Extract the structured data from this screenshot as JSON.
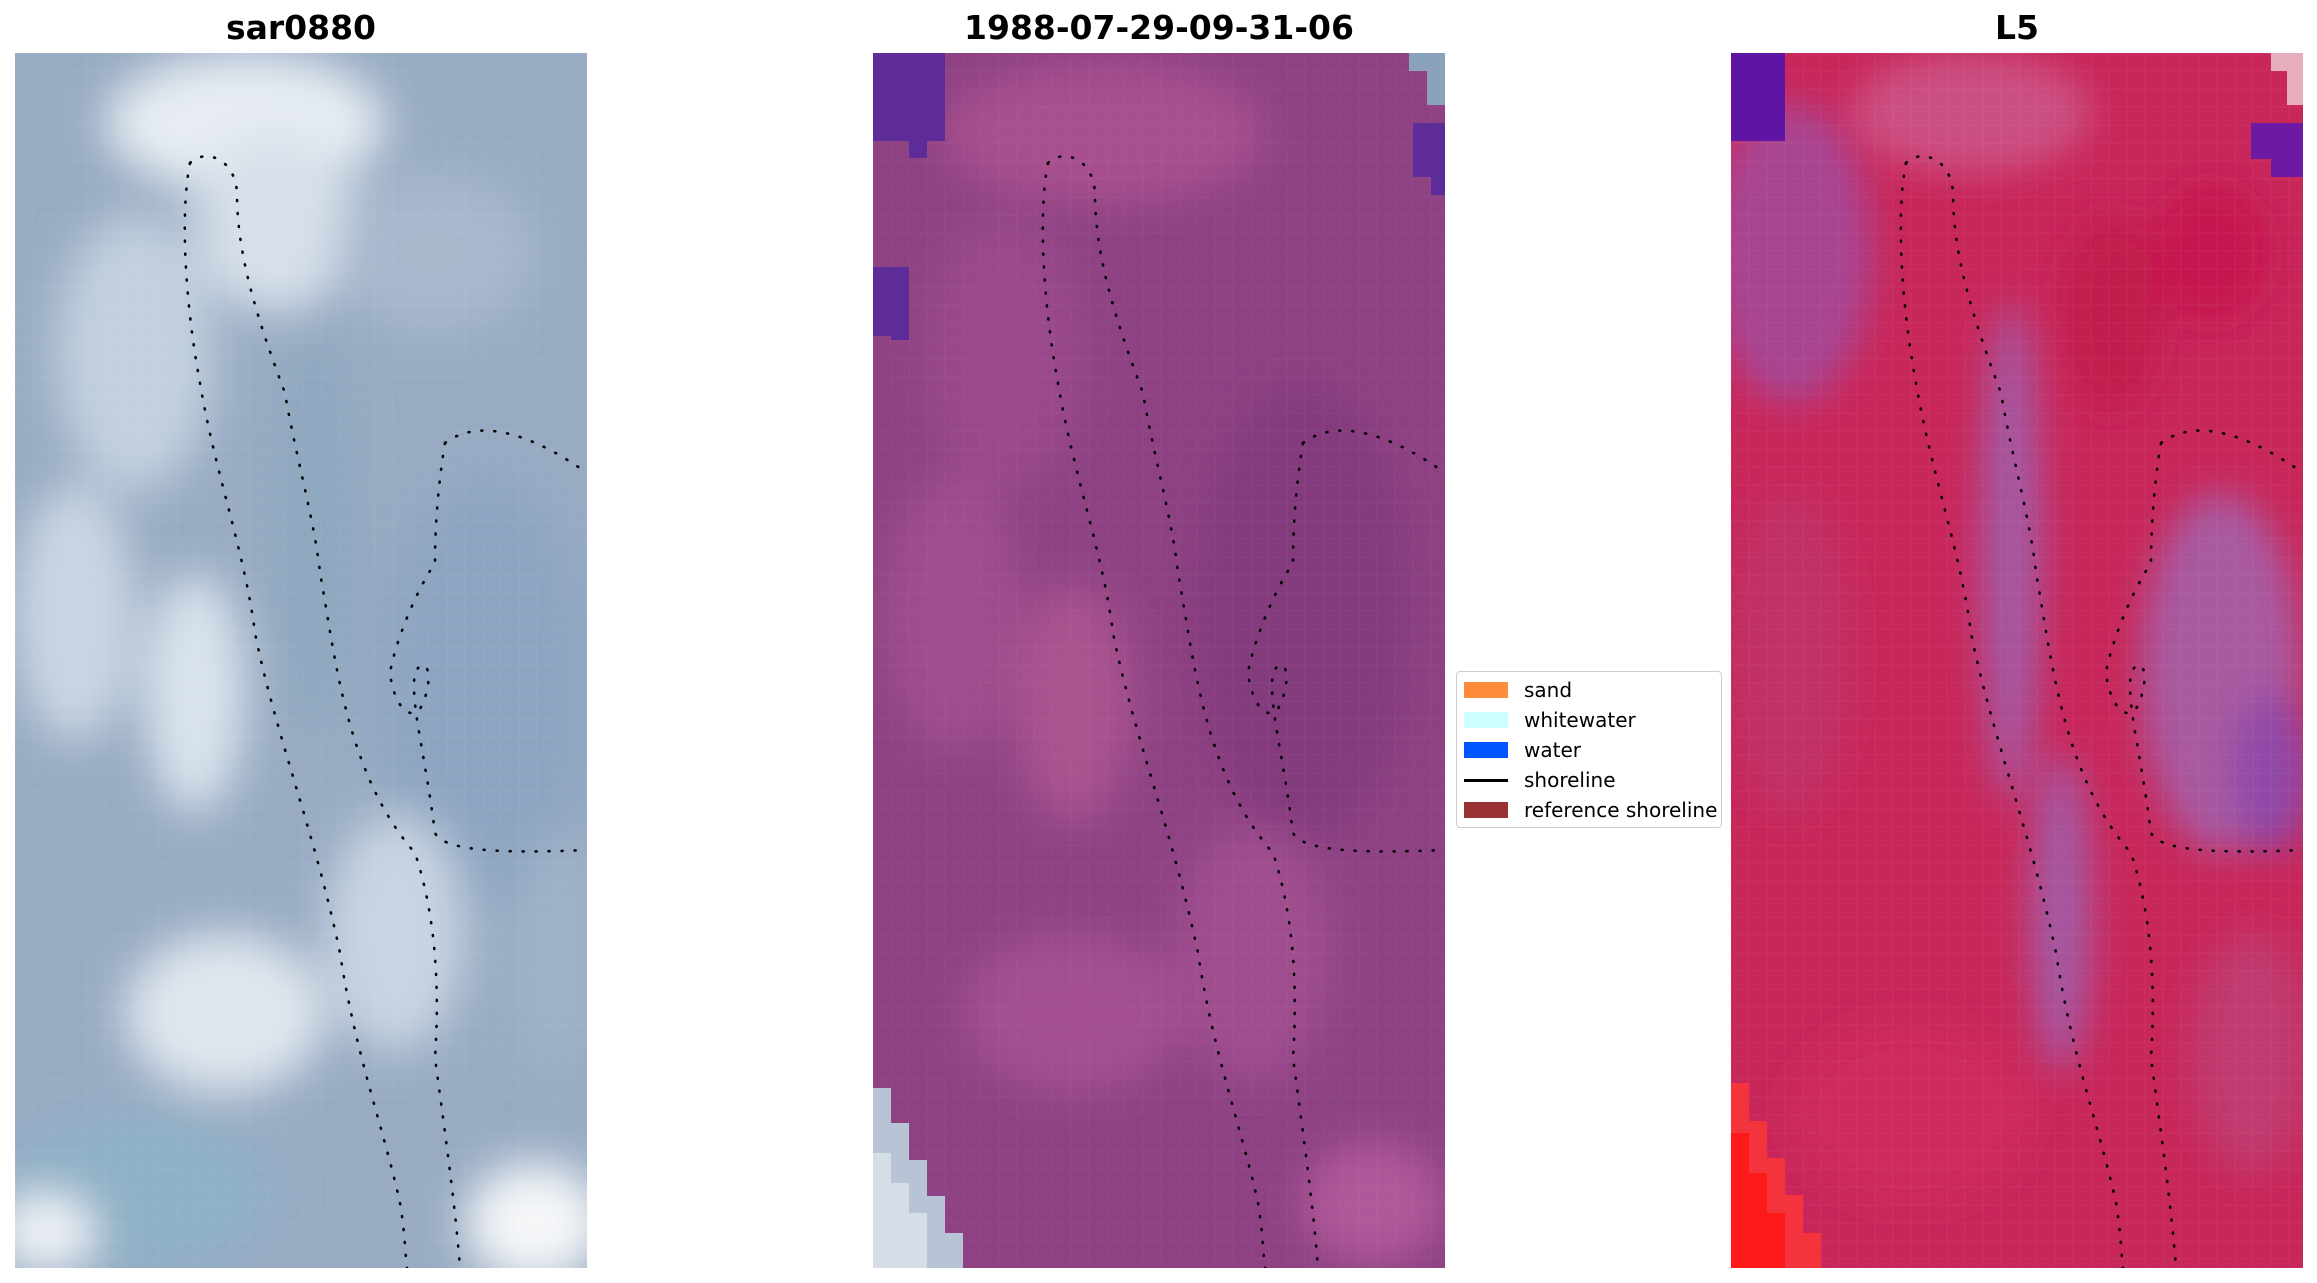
{
  "panels": [
    {
      "id": "rgb",
      "title": "sar0880"
    },
    {
      "id": "classification",
      "title": "1988-07-29-09-31-06"
    },
    {
      "id": "mndwi",
      "title": "L5"
    }
  ],
  "legend": {
    "items": [
      {
        "label": "sand",
        "color": "#ff8c3a",
        "kind": "patch"
      },
      {
        "label": "whitewater",
        "color": "#ccffff",
        "kind": "patch"
      },
      {
        "label": "water",
        "color": "#0055ff",
        "kind": "patch"
      },
      {
        "label": "shoreline",
        "color": "#000000",
        "kind": "line"
      },
      {
        "label": "reference shoreline",
        "color": "#993333",
        "kind": "patch"
      }
    ]
  }
}
